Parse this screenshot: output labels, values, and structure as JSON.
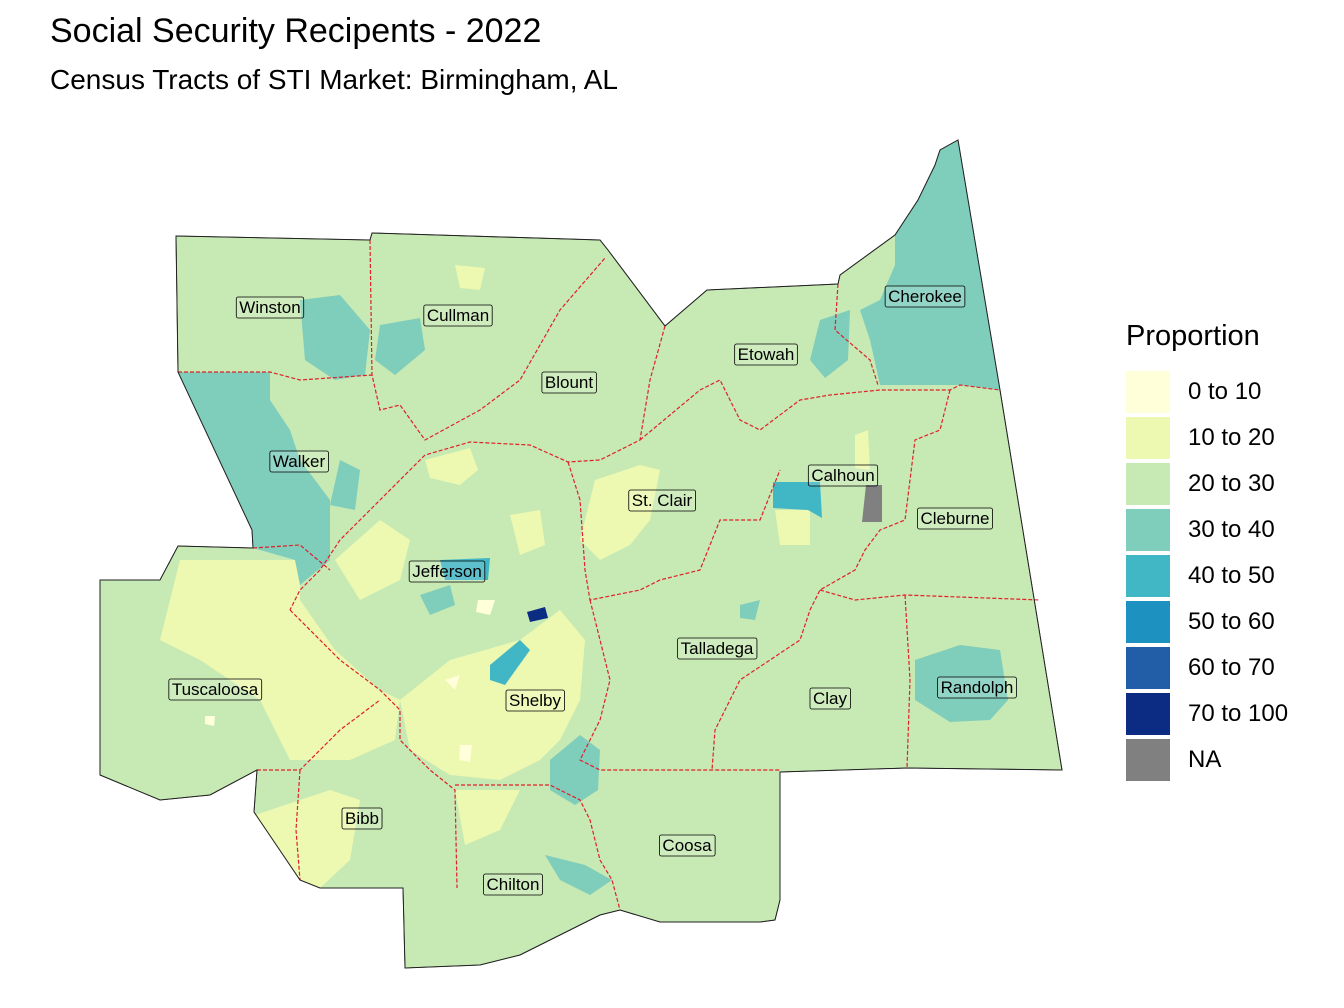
{
  "title": "Social Security Recipents - 2022",
  "subtitle": "Census Tracts of STI Market: Birmingham, AL",
  "legend": {
    "title": "Proportion",
    "items": [
      {
        "label": "0 to 10",
        "color": "#ffffd9"
      },
      {
        "label": "10 to 20",
        "color": "#edf8b1"
      },
      {
        "label": "20 to 30",
        "color": "#c7e9b4"
      },
      {
        "label": "30 to 40",
        "color": "#7fcdbb"
      },
      {
        "label": "40 to 50",
        "color": "#41b6c4"
      },
      {
        "label": "50 to 60",
        "color": "#1d91c0"
      },
      {
        "label": "60 to 70",
        "color": "#225ea8"
      },
      {
        "label": "70 to 100",
        "color": "#0c2c84"
      },
      {
        "label": "NA",
        "color": "#808080"
      }
    ]
  },
  "counties": [
    {
      "name": "Winston"
    },
    {
      "name": "Cullman"
    },
    {
      "name": "Blount"
    },
    {
      "name": "Etowah"
    },
    {
      "name": "Cherokee"
    },
    {
      "name": "Walker"
    },
    {
      "name": "Calhoun"
    },
    {
      "name": "St. Clair"
    },
    {
      "name": "Cleburne"
    },
    {
      "name": "Jefferson"
    },
    {
      "name": "Talladega"
    },
    {
      "name": "Tuscaloosa"
    },
    {
      "name": "Shelby"
    },
    {
      "name": "Clay"
    },
    {
      "name": "Randolph"
    },
    {
      "name": "Bibb"
    },
    {
      "name": "Coosa"
    },
    {
      "name": "Chilton"
    }
  ]
}
